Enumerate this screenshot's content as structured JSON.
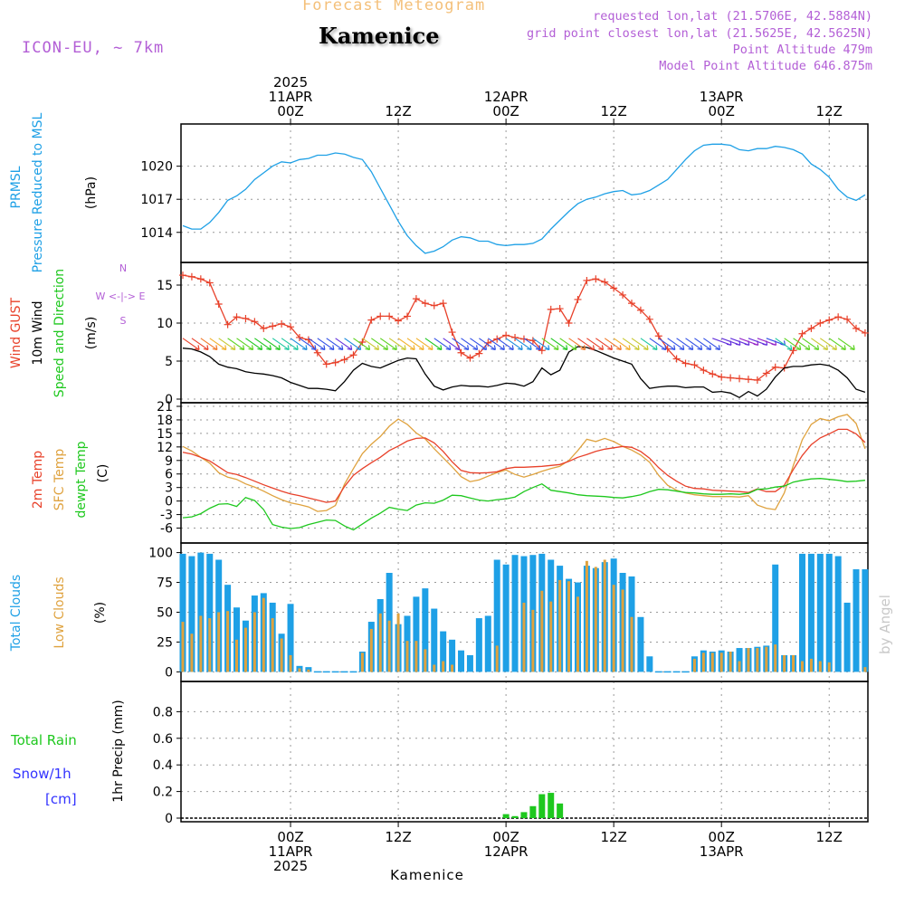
{
  "header": {
    "subtitle": "Forecast Meteogram",
    "location": "Kamenice",
    "model": "ICON-EU, ~ 7km",
    "requested": "requested lon,lat (21.5706E, 42.5884N)",
    "gridpoint": "grid point closest lon,lat (21.5625E, 42.5625N)",
    "point_alt": "Point Altitude 479m",
    "model_alt": "Model Point Altitude 646.875m",
    "footer": "Kamenice",
    "watermark": "by Angel"
  },
  "colors": {
    "blue": "#1ea0e6",
    "red": "#e8412a",
    "orange": "#dfa23e",
    "green": "#1ec81e",
    "black": "#000000",
    "purple": "#b35fd6",
    "rainblue": "#3232ff"
  },
  "time_axis": {
    "top_labels": [
      {
        "t": 12,
        "lines": [
          "2025",
          "11APR",
          "00Z"
        ]
      },
      {
        "t": 24,
        "lines": [
          "12Z"
        ]
      },
      {
        "t": 36,
        "lines": [
          "12APR",
          "00Z"
        ]
      },
      {
        "t": 48,
        "lines": [
          "12Z"
        ]
      },
      {
        "t": 60,
        "lines": [
          "13APR",
          "00Z"
        ]
      },
      {
        "t": 72,
        "lines": [
          "12Z"
        ]
      }
    ],
    "bottom_labels": [
      {
        "t": 12,
        "lines": [
          "00Z",
          "11APR",
          "2025"
        ]
      },
      {
        "t": 24,
        "lines": [
          "12Z"
        ]
      },
      {
        "t": 36,
        "lines": [
          "00Z",
          "12APR"
        ]
      },
      {
        "t": 48,
        "lines": [
          "12Z"
        ]
      },
      {
        "t": 60,
        "lines": [
          "00Z",
          "13APR"
        ]
      },
      {
        "t": 72,
        "lines": [
          "12Z"
        ]
      }
    ]
  },
  "panels": {
    "pressure": {
      "labels": [
        "PRMSL",
        "Pressure Reduced to MSL"
      ],
      "unit": "(hPa)"
    },
    "wind": {
      "labels": [
        "Wind GUST",
        "10m Wind",
        "Speed and Direction"
      ],
      "unit": "(m/s)",
      "compass": [
        "N",
        "W <-|-> E",
        "S"
      ]
    },
    "temp": {
      "labels": [
        "2m Temp",
        "SFC Temp",
        "dewpt Temp"
      ],
      "unit": "(C)"
    },
    "clouds": {
      "labels": [
        "Total Clouds",
        "Low Clouds"
      ],
      "unit": "(%)"
    },
    "precip": {
      "labels": [
        "Total  Rain",
        "Snow/1h",
        "[cm]"
      ],
      "unit": "1hr Precip (mm)"
    }
  },
  "chart_data": [
    {
      "type": "line",
      "title": "PRMSL Pressure Reduced to MSL",
      "ylabel": "(hPa)",
      "ylim": [
        1011.6,
        1023.5
      ],
      "yticks": [
        1014,
        1017,
        1020
      ],
      "xlim": [
        0,
        76
      ],
      "grid": true,
      "x": [
        0,
        1,
        2,
        3,
        4,
        5,
        6,
        7,
        8,
        9,
        10,
        11,
        12,
        13,
        14,
        15,
        16,
        17,
        18,
        19,
        20,
        21,
        22,
        23,
        24,
        25,
        26,
        27,
        28,
        29,
        30,
        31,
        32,
        33,
        34,
        35,
        36,
        37,
        38,
        39,
        40,
        41,
        42,
        43,
        44,
        45,
        46,
        47,
        48,
        49,
        50,
        51,
        52,
        53,
        54,
        55,
        56,
        57,
        58,
        59,
        60,
        61,
        62,
        63,
        64,
        65,
        66,
        67,
        68,
        69,
        70,
        71,
        72,
        73,
        74,
        75,
        76
      ],
      "series": [
        {
          "name": "PRMSL",
          "values": [
            1014.6,
            1014.3,
            1014.3,
            1014.9,
            1015.8,
            1016.9,
            1017.3,
            1017.9,
            1018.8,
            1019.4,
            1020.0,
            1020.4,
            1020.3,
            1020.6,
            1020.7,
            1021.0,
            1021.0,
            1021.2,
            1021.1,
            1020.8,
            1020.6,
            1019.5,
            1018.0,
            1016.5,
            1015.0,
            1013.7,
            1012.8,
            1012.1,
            1012.3,
            1012.7,
            1013.3,
            1013.6,
            1013.5,
            1013.2,
            1013.2,
            1012.9,
            1012.8,
            1012.9,
            1012.9,
            1013.0,
            1013.4,
            1014.3,
            1015.1,
            1015.9,
            1016.6,
            1017.0,
            1017.2,
            1017.5,
            1017.7,
            1017.8,
            1017.4,
            1017.5,
            1017.8,
            1018.3,
            1018.8,
            1019.7,
            1020.6,
            1021.4,
            1021.9,
            1022.0,
            1022.0,
            1021.9,
            1021.5,
            1021.4,
            1021.6,
            1021.6,
            1021.8,
            1021.7,
            1021.5,
            1021.1,
            1020.2,
            1019.7,
            1019.0,
            1017.9,
            1017.2,
            1016.9,
            1017.4
          ]
        }
      ]
    },
    {
      "type": "line",
      "title": "Wind GUST / 10m Wind Speed and Direction",
      "ylabel": "(m/s)",
      "ylim": [
        0,
        17.5
      ],
      "yticks": [
        0,
        5,
        10,
        15
      ],
      "xlim": [
        0,
        76
      ],
      "grid": true,
      "x": [
        0,
        1,
        2,
        3,
        4,
        5,
        6,
        7,
        8,
        9,
        10,
        11,
        12,
        13,
        14,
        15,
        16,
        17,
        18,
        19,
        20,
        21,
        22,
        23,
        24,
        25,
        26,
        27,
        28,
        29,
        30,
        31,
        32,
        33,
        34,
        35,
        36,
        37,
        38,
        39,
        40,
        41,
        42,
        43,
        44,
        45,
        46,
        47,
        48,
        49,
        50,
        51,
        52,
        53,
        54,
        55,
        56,
        57,
        58,
        59,
        60,
        61,
        62,
        63,
        64,
        65,
        66,
        67,
        68,
        69,
        70,
        71,
        72,
        73,
        74,
        75,
        76
      ],
      "series": [
        {
          "name": "Wind GUST",
          "values": [
            16.3,
            16.1,
            15.8,
            15.3,
            12.5,
            9.8,
            10.8,
            10.6,
            10.2,
            9.3,
            9.6,
            9.9,
            9.5,
            8.1,
            7.8,
            6.1,
            4.6,
            4.8,
            5.2,
            5.8,
            7.5,
            10.4,
            10.9,
            10.9,
            10.3,
            10.9,
            13.2,
            12.6,
            12.3,
            12.6,
            8.8,
            6.1,
            5.4,
            6.0,
            7.4,
            7.9,
            8.4,
            8.1,
            7.9,
            7.7,
            6.4,
            11.8,
            11.9,
            10.0,
            13.1,
            15.6,
            15.8,
            15.4,
            14.6,
            13.7,
            12.6,
            11.7,
            10.5,
            8.3,
            6.6,
            5.3,
            4.7,
            4.5,
            3.8,
            3.3,
            2.9,
            2.8,
            2.7,
            2.6,
            2.5,
            3.4,
            4.2,
            4.1,
            6.4,
            8.6,
            9.3,
            10.0,
            10.4,
            10.8,
            10.5,
            9.3,
            8.7
          ]
        },
        {
          "name": "10m Wind",
          "values": [
            6.7,
            6.6,
            6.2,
            5.6,
            4.6,
            4.2,
            4.0,
            3.6,
            3.4,
            3.3,
            3.1,
            2.8,
            2.2,
            1.8,
            1.4,
            1.4,
            1.3,
            1.1,
            2.3,
            3.8,
            4.7,
            4.3,
            4.1,
            4.6,
            5.1,
            5.4,
            5.3,
            3.3,
            1.7,
            1.2,
            1.6,
            1.8,
            1.7,
            1.7,
            1.6,
            1.8,
            2.1,
            2.0,
            1.7,
            2.3,
            4.1,
            3.2,
            3.8,
            6.2,
            6.9,
            6.8,
            6.4,
            5.9,
            5.4,
            5.0,
            4.6,
            2.7,
            1.4,
            1.6,
            1.7,
            1.7,
            1.5,
            1.6,
            1.6,
            0.9,
            1.0,
            0.8,
            0.2,
            1.0,
            0.4,
            1.3,
            2.9,
            4.1,
            4.3,
            4.3,
            4.5,
            4.6,
            4.4,
            3.8,
            2.8,
            1.3,
            0.9
          ]
        }
      ]
    },
    {
      "type": "line",
      "title": "2m Temp / SFC Temp / dewpt Temp",
      "ylabel": "(C)",
      "ylim": [
        -8.5,
        21
      ],
      "yticks": [
        -6,
        -3,
        0,
        3,
        6,
        9,
        12,
        15,
        18,
        21
      ],
      "xlim": [
        0,
        76
      ],
      "grid": true,
      "x": [
        0,
        1,
        2,
        3,
        4,
        5,
        6,
        7,
        8,
        9,
        10,
        11,
        12,
        13,
        14,
        15,
        16,
        17,
        18,
        19,
        20,
        21,
        22,
        23,
        24,
        25,
        26,
        27,
        28,
        29,
        30,
        31,
        32,
        33,
        34,
        35,
        36,
        37,
        38,
        39,
        40,
        41,
        42,
        43,
        44,
        45,
        46,
        47,
        48,
        49,
        50,
        51,
        52,
        53,
        54,
        55,
        56,
        57,
        58,
        59,
        60,
        61,
        62,
        63,
        64,
        65,
        66,
        67,
        68,
        69,
        70,
        71,
        72,
        73,
        74,
        75,
        76
      ],
      "series": [
        {
          "name": "2m Temp",
          "values": [
            10.8,
            10.4,
            9.7,
            8.9,
            7.6,
            6.3,
            5.9,
            5.2,
            4.4,
            3.6,
            2.9,
            2.2,
            1.6,
            1.2,
            0.7,
            0.2,
            -0.3,
            0.0,
            3.2,
            5.7,
            7.2,
            8.5,
            9.7,
            11.2,
            12.2,
            13.3,
            13.9,
            14.0,
            12.9,
            11.0,
            8.7,
            6.8,
            6.3,
            6.2,
            6.3,
            6.5,
            7.2,
            7.5,
            7.5,
            7.6,
            7.7,
            7.9,
            8.1,
            8.8,
            9.7,
            10.3,
            11.0,
            11.5,
            11.8,
            12.1,
            11.9,
            11.0,
            9.5,
            7.4,
            5.7,
            4.4,
            3.3,
            2.8,
            2.7,
            2.4,
            2.3,
            2.2,
            2.1,
            1.9,
            2.7,
            2.1,
            2.1,
            3.5,
            7.0,
            10.1,
            12.5,
            14.0,
            14.9,
            15.9,
            15.9,
            14.9,
            13.0
          ]
        },
        {
          "name": "SFC Temp",
          "values": [
            12.1,
            11.1,
            9.7,
            8.4,
            6.3,
            5.3,
            4.8,
            3.8,
            3.1,
            2.2,
            1.2,
            0.3,
            -0.4,
            -0.8,
            -1.3,
            -2.3,
            -2.1,
            -1.0,
            3.7,
            7.2,
            10.5,
            12.6,
            14.3,
            16.6,
            18.2,
            17.0,
            15.1,
            13.8,
            11.6,
            9.6,
            7.6,
            5.4,
            4.3,
            4.7,
            5.5,
            6.3,
            6.9,
            5.9,
            5.3,
            5.9,
            6.6,
            7.2,
            7.7,
            9.0,
            11.2,
            13.7,
            13.2,
            13.9,
            13.2,
            12.1,
            11.3,
            10.2,
            8.6,
            5.7,
            3.5,
            2.4,
            1.8,
            1.4,
            1.2,
            1.0,
            1.0,
            1.0,
            0.9,
            1.2,
            -0.9,
            -1.6,
            -1.9,
            1.8,
            7.9,
            13.6,
            17.0,
            18.3,
            17.8,
            18.7,
            19.2,
            17.2,
            11.6
          ]
        },
        {
          "name": "dewpt Temp",
          "values": [
            -3.7,
            -3.5,
            -2.8,
            -1.6,
            -0.7,
            -0.6,
            -1.2,
            0.8,
            0.1,
            -1.9,
            -5.2,
            -5.8,
            -6.1,
            -5.9,
            -5.2,
            -4.7,
            -4.2,
            -4.3,
            -5.5,
            -6.4,
            -5.1,
            -3.8,
            -2.7,
            -1.4,
            -1.8,
            -2.1,
            -0.9,
            -0.4,
            -0.5,
            0.2,
            1.3,
            1.2,
            0.7,
            0.2,
            0.0,
            0.3,
            0.5,
            0.9,
            2.1,
            3.0,
            3.8,
            2.4,
            2.1,
            1.8,
            1.4,
            1.2,
            1.1,
            1.0,
            0.8,
            0.7,
            1.0,
            1.4,
            2.1,
            2.6,
            2.5,
            2.2,
            1.9,
            1.8,
            1.6,
            1.5,
            1.5,
            1.6,
            1.5,
            1.7,
            2.6,
            2.7,
            3.1,
            3.3,
            4.2,
            4.6,
            4.9,
            5.0,
            4.8,
            4.6,
            4.3,
            4.4,
            4.6
          ]
        }
      ]
    },
    {
      "type": "bar",
      "title": "Total Clouds / Low Clouds",
      "ylabel": "(%)",
      "ylim": [
        -5,
        105
      ],
      "yticks": [
        0,
        25,
        50,
        75,
        100
      ],
      "xlim": [
        0,
        76
      ],
      "grid": true,
      "x": [
        0,
        1,
        2,
        3,
        4,
        5,
        6,
        7,
        8,
        9,
        10,
        11,
        12,
        13,
        14,
        15,
        16,
        17,
        18,
        19,
        20,
        21,
        22,
        23,
        24,
        25,
        26,
        27,
        28,
        29,
        30,
        31,
        32,
        33,
        34,
        35,
        36,
        37,
        38,
        39,
        40,
        41,
        42,
        43,
        44,
        45,
        46,
        47,
        48,
        49,
        50,
        51,
        52,
        53,
        54,
        55,
        56,
        57,
        58,
        59,
        60,
        61,
        62,
        63,
        64,
        65,
        66,
        67,
        68,
        69,
        70,
        71,
        72,
        73,
        74,
        75,
        76
      ],
      "series": [
        {
          "name": "Total Clouds",
          "values": [
            99,
            97,
            100,
            99,
            94,
            73,
            54,
            43,
            64,
            66,
            58,
            32,
            57,
            5,
            4,
            0,
            0,
            0,
            0,
            0,
            17,
            42,
            61,
            83,
            40,
            47,
            63,
            70,
            53,
            34,
            27,
            18,
            14,
            45,
            47,
            94,
            90,
            98,
            97,
            98,
            99,
            94,
            89,
            78,
            75,
            89,
            87,
            92,
            95,
            83,
            80,
            46,
            13,
            0,
            0,
            0,
            0,
            13,
            18,
            17,
            18,
            17,
            20,
            20,
            21,
            22,
            90,
            14,
            14,
            99,
            99,
            99,
            99,
            97,
            58,
            86,
            86
          ]
        },
        {
          "name": "Low Clouds",
          "values": [
            42,
            32,
            47,
            45,
            50,
            51,
            27,
            37,
            50,
            62,
            45,
            28,
            14,
            3,
            2,
            0,
            0,
            0,
            0,
            0,
            16,
            36,
            49,
            43,
            49,
            26,
            26,
            19,
            6,
            9,
            6,
            0,
            0,
            0,
            0,
            22,
            0,
            0,
            58,
            52,
            68,
            59,
            77,
            76,
            63,
            93,
            88,
            94,
            73,
            69,
            46,
            0,
            0,
            0,
            0,
            0,
            0,
            11,
            16,
            16,
            16,
            17,
            9,
            20,
            20,
            21,
            23,
            14,
            14,
            9,
            11,
            9,
            8,
            0,
            0,
            0,
            4
          ]
        }
      ]
    },
    {
      "type": "bar",
      "title": "Total Rain / Snow 1h",
      "ylabel": "1hr Precip (mm)",
      "ylim": [
        0,
        1.0
      ],
      "yticks": [
        0,
        0.2,
        0.4,
        0.6,
        0.8
      ],
      "xlim": [
        0,
        76
      ],
      "grid": true,
      "x": [
        36,
        37,
        38,
        39,
        40,
        41,
        42
      ],
      "series": [
        {
          "name": "Total Rain",
          "values": [
            0.03,
            0.015,
            0.045,
            0.09,
            0.18,
            0.19,
            0.11
          ]
        }
      ]
    }
  ]
}
